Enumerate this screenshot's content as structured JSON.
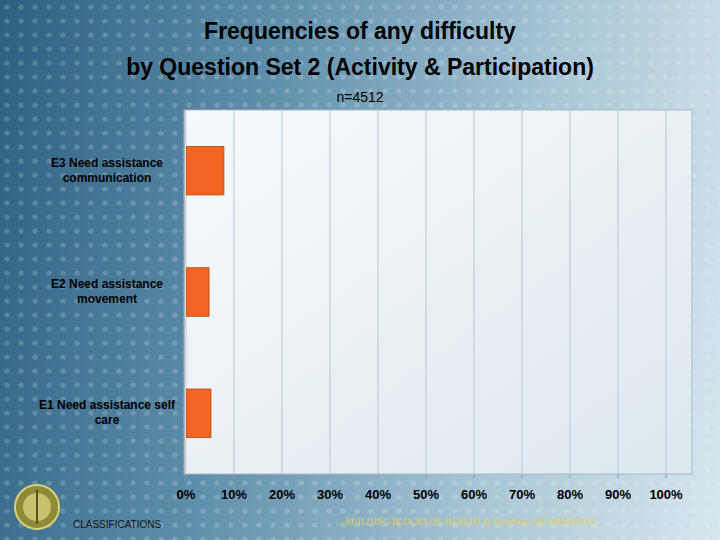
{
  "chart_data": {
    "type": "bar",
    "orientation": "horizontal",
    "title": [
      "Frequencies of any difficulty",
      "by Question Set 2 (Activity & Participation)"
    ],
    "subtitle": "n=4512",
    "categories": [
      "E3 Need assistance communication",
      "E2 Need assistance movement",
      "E1 Need assistance self care"
    ],
    "values": [
      7.9,
      4.8,
      5.2
    ],
    "color": "#f26522",
    "xlim": [
      0,
      100
    ],
    "xticks": [
      {
        "value": 0,
        "label": "0%"
      },
      {
        "value": 10,
        "label": "10%"
      },
      {
        "value": 20,
        "label": "20%"
      },
      {
        "value": 30,
        "label": "30%"
      },
      {
        "value": 40,
        "label": "40%"
      },
      {
        "value": 50,
        "label": "50%"
      },
      {
        "value": 60,
        "label": "60%"
      },
      {
        "value": 70,
        "label": "70%"
      },
      {
        "value": 80,
        "label": "80%"
      },
      {
        "value": 90,
        "label": "90%"
      },
      {
        "value": 100,
        "label": "100%"
      }
    ],
    "grid": true
  },
  "footer": {
    "left": "CLASSIFICATIONS",
    "right": "... BUILDING BLOCKS OF HEALTH & Disability INFORMATION ..."
  }
}
